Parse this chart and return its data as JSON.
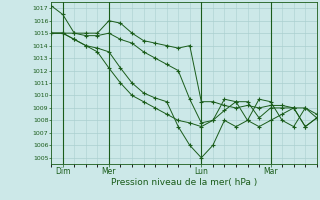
{
  "xlabel": "Pression niveau de la mer( hPa )",
  "ylim": [
    1004.5,
    1017.5
  ],
  "yticks": [
    1005,
    1006,
    1007,
    1008,
    1009,
    1010,
    1011,
    1012,
    1013,
    1014,
    1015,
    1016,
    1017
  ],
  "day_labels": [
    "Dim",
    "Mer",
    "Lun",
    "Mar"
  ],
  "day_positions": [
    1,
    5,
    13,
    19
  ],
  "bg_color": "#cce8e8",
  "line_color": "#1a5c1a",
  "grid_color": "#aacfcf",
  "series": [
    [
      1017.2,
      1016.5,
      1015.0,
      1015.0,
      1015.0,
      1016.0,
      1015.8,
      1015.0,
      1014.4,
      1014.2,
      1014.0,
      1013.8,
      1014.0,
      1009.5,
      1009.5,
      1009.2,
      1009.0,
      1009.2,
      1009.0,
      1009.2,
      1009.2,
      1009.0,
      1009.0,
      1008.2
    ],
    [
      1015.0,
      1015.0,
      1015.0,
      1014.8,
      1014.8,
      1015.0,
      1014.5,
      1014.2,
      1013.5,
      1013.0,
      1012.5,
      1012.0,
      1009.7,
      1007.8,
      1008.0,
      1008.8,
      1009.5,
      1009.5,
      1008.2,
      1009.0,
      1009.0,
      1009.0,
      1007.5,
      1008.2
    ],
    [
      1015.0,
      1015.0,
      1014.5,
      1014.0,
      1013.8,
      1013.5,
      1012.2,
      1011.0,
      1010.2,
      1009.8,
      1009.5,
      1007.5,
      1006.0,
      1005.0,
      1006.0,
      1008.0,
      1007.5,
      1008.0,
      1009.7,
      1009.5,
      1008.0,
      1007.5,
      1009.0,
      1008.5
    ],
    [
      1015.0,
      1015.0,
      1014.5,
      1014.0,
      1013.5,
      1012.2,
      1011.0,
      1010.0,
      1009.5,
      1009.0,
      1008.5,
      1008.0,
      1007.8,
      1007.5,
      1008.0,
      1009.7,
      1009.5,
      1008.0,
      1007.5,
      1008.0,
      1008.5,
      1009.0,
      1007.5,
      1008.2
    ]
  ],
  "n_points": 24
}
